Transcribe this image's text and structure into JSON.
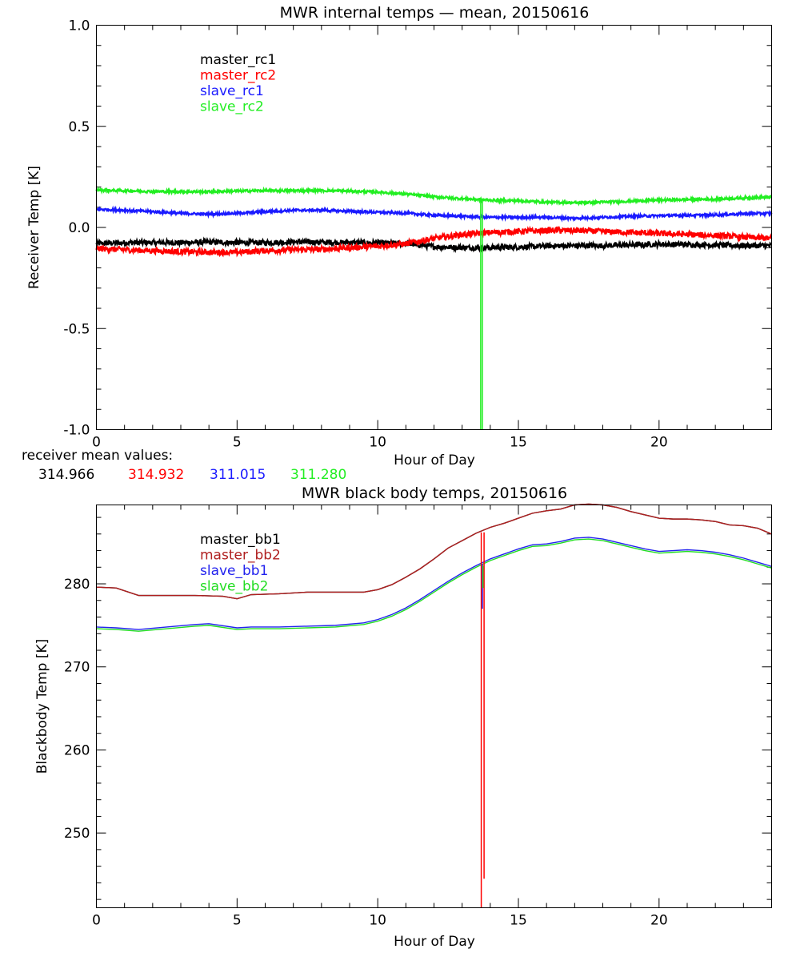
{
  "colors": {
    "black": "#000000",
    "red": "#ff0000",
    "blue": "#1a1aff",
    "green": "#22ee22",
    "darkred": "#b02020",
    "bb_blue": "#2222ee",
    "bb_green": "#22dd22"
  },
  "chart_data": [
    {
      "type": "line",
      "title": "MWR internal temps — mean, 20150616",
      "xlabel": "Hour of Day",
      "ylabel": "Receiver Temp [K]",
      "xlim": [
        0,
        24
      ],
      "ylim": [
        -1.0,
        1.0
      ],
      "xticks": [
        0,
        5,
        10,
        15,
        20
      ],
      "xtick_labels": [
        "0",
        "5",
        "10",
        "15",
        "20"
      ],
      "yticks": [
        -1.0,
        -0.5,
        0.0,
        0.5,
        1.0
      ],
      "ytick_labels": [
        "-1.0",
        "-0.5",
        "0.0",
        "0.5",
        "1.0"
      ],
      "noise_band": true,
      "series": [
        {
          "name": "master_rc1",
          "color": "#000000",
          "noise": 0.013,
          "x": [
            0,
            1,
            2,
            3,
            4,
            5,
            6,
            7,
            8,
            9,
            10,
            11,
            12,
            13,
            14,
            15,
            16,
            17,
            18,
            19,
            20,
            21,
            22,
            23,
            24
          ],
          "y": [
            -0.08,
            -0.075,
            -0.075,
            -0.075,
            -0.073,
            -0.075,
            -0.075,
            -0.072,
            -0.073,
            -0.075,
            -0.077,
            -0.08,
            -0.095,
            -0.1,
            -0.1,
            -0.097,
            -0.092,
            -0.09,
            -0.09,
            -0.087,
            -0.083,
            -0.085,
            -0.087,
            -0.09,
            -0.09
          ]
        },
        {
          "name": "master_rc2",
          "color": "#ff0000",
          "noise": 0.014,
          "x": [
            0,
            1,
            2,
            3,
            4,
            5,
            6,
            7,
            8,
            9,
            10,
            11,
            12,
            13,
            14,
            15,
            16,
            17,
            18,
            19,
            20,
            21,
            22,
            23,
            24
          ],
          "y": [
            -0.105,
            -0.11,
            -0.115,
            -0.12,
            -0.123,
            -0.123,
            -0.115,
            -0.11,
            -0.108,
            -0.1,
            -0.093,
            -0.08,
            -0.055,
            -0.035,
            -0.025,
            -0.02,
            -0.015,
            -0.015,
            -0.02,
            -0.025,
            -0.03,
            -0.035,
            -0.04,
            -0.048,
            -0.055
          ]
        },
        {
          "name": "slave_rc1",
          "color": "#1a1aff",
          "noise": 0.006,
          "x": [
            0,
            1,
            2,
            3,
            4,
            5,
            6,
            7,
            8,
            9,
            10,
            11,
            12,
            13,
            14,
            15,
            16,
            17,
            18,
            19,
            20,
            21,
            22,
            23,
            24
          ],
          "y": [
            0.09,
            0.085,
            0.078,
            0.07,
            0.065,
            0.07,
            0.078,
            0.085,
            0.085,
            0.08,
            0.075,
            0.07,
            0.06,
            0.055,
            0.05,
            0.05,
            0.05,
            0.045,
            0.05,
            0.055,
            0.058,
            0.06,
            0.062,
            0.068,
            0.07
          ]
        },
        {
          "name": "slave_rc2",
          "color": "#22ee22",
          "noise": 0.006,
          "x": [
            0,
            1,
            2,
            3,
            4,
            5,
            6,
            7,
            8,
            9,
            10,
            11,
            12,
            13,
            14,
            15,
            16,
            17,
            18,
            19,
            20,
            21,
            22,
            23,
            24
          ],
          "y": [
            0.185,
            0.182,
            0.178,
            0.177,
            0.177,
            0.18,
            0.182,
            0.182,
            0.182,
            0.18,
            0.175,
            0.165,
            0.152,
            0.142,
            0.135,
            0.132,
            0.125,
            0.122,
            0.125,
            0.13,
            0.135,
            0.138,
            0.14,
            0.145,
            0.15
          ]
        }
      ],
      "spikes": [
        {
          "series": "slave_rc2",
          "x": 13.66,
          "from": 0.13,
          "to": -1.0,
          "color": "#22ee22"
        },
        {
          "series": "slave_rc2",
          "x": 13.72,
          "from": 0.13,
          "to": -1.0,
          "color": "#22ee22"
        }
      ],
      "legend_position": "top-left",
      "annotation_label": "receiver mean values:",
      "mean_values": [
        {
          "value": "314.966",
          "color": "#000000"
        },
        {
          "value": "314.932",
          "color": "#ff0000"
        },
        {
          "value": "311.015",
          "color": "#1a1aff"
        },
        {
          "value": "311.280",
          "color": "#22ee22"
        }
      ]
    },
    {
      "type": "line",
      "title": "MWR black body temps, 20150616",
      "xlabel": "Hour of Day",
      "ylabel": "Blackbody Temp [K]",
      "xlim": [
        0,
        24
      ],
      "ylim": [
        241,
        289.5
      ],
      "xticks": [
        0,
        5,
        10,
        15,
        20
      ],
      "xtick_labels": [
        "0",
        "5",
        "10",
        "15",
        "20"
      ],
      "yticks": [
        250,
        260,
        270,
        280
      ],
      "ytick_labels": [
        "250",
        "260",
        "270",
        "280"
      ],
      "noise_band": false,
      "series": [
        {
          "name": "master_bb1",
          "color": "#000000",
          "x": [
            0,
            0.7,
            1.5,
            2.5,
            3.5,
            4.5,
            5.0,
            5.5,
            6.5,
            7.5,
            8.5,
            9.5,
            10.0,
            10.5,
            11.0,
            11.5,
            12.0,
            12.5,
            13.0,
            13.5,
            14.0,
            14.5,
            15.0,
            15.5,
            16.0,
            16.5,
            17.0,
            17.5,
            18.0,
            18.5,
            19.0,
            19.5,
            20.0,
            20.5,
            21.0,
            21.5,
            22.0,
            22.5,
            23.0,
            23.5,
            24.0
          ],
          "y": [
            279.6,
            279.5,
            278.6,
            278.6,
            278.6,
            278.5,
            278.2,
            278.7,
            278.8,
            279.0,
            279.0,
            279.0,
            279.3,
            279.9,
            280.8,
            281.8,
            283.0,
            284.3,
            285.2,
            286.1,
            286.8,
            287.3,
            287.9,
            288.5,
            288.8,
            289.0,
            289.5,
            289.6,
            289.5,
            289.2,
            288.7,
            288.3,
            287.9,
            287.8,
            287.8,
            287.7,
            287.5,
            287.1,
            287.0,
            286.7,
            286.0
          ]
        },
        {
          "name": "master_bb2",
          "color": "#b02020",
          "x": [
            0,
            0.7,
            1.5,
            2.5,
            3.5,
            4.5,
            5.0,
            5.5,
            6.5,
            7.5,
            8.5,
            9.5,
            10.0,
            10.5,
            11.0,
            11.5,
            12.0,
            12.5,
            13.0,
            13.5,
            14.0,
            14.5,
            15.0,
            15.5,
            16.0,
            16.5,
            17.0,
            17.5,
            18.0,
            18.5,
            19.0,
            19.5,
            20.0,
            20.5,
            21.0,
            21.5,
            22.0,
            22.5,
            23.0,
            23.5,
            24.0
          ],
          "y": [
            279.6,
            279.5,
            278.6,
            278.6,
            278.6,
            278.5,
            278.2,
            278.7,
            278.8,
            279.0,
            279.0,
            279.0,
            279.3,
            279.9,
            280.8,
            281.8,
            283.0,
            284.3,
            285.2,
            286.1,
            286.8,
            287.3,
            287.9,
            288.5,
            288.8,
            289.0,
            289.5,
            289.6,
            289.5,
            289.2,
            288.7,
            288.3,
            287.9,
            287.8,
            287.8,
            287.7,
            287.5,
            287.1,
            287.0,
            286.7,
            286.0
          ]
        },
        {
          "name": "slave_bb1",
          "color": "#2222ee",
          "x": [
            0,
            0.7,
            1.5,
            2.5,
            3.5,
            4.0,
            5.0,
            5.5,
            6.5,
            7.5,
            8.5,
            9.5,
            10.0,
            10.5,
            11.0,
            11.5,
            12.0,
            12.5,
            13.0,
            13.5,
            14.0,
            14.5,
            15.0,
            15.5,
            16.0,
            16.5,
            17.0,
            17.5,
            18.0,
            18.5,
            19.0,
            19.5,
            20.0,
            20.5,
            21.0,
            21.5,
            22.0,
            22.5,
            23.0,
            23.5,
            24.0
          ],
          "y": [
            274.8,
            274.7,
            274.5,
            274.8,
            275.1,
            275.2,
            274.7,
            274.8,
            274.8,
            274.9,
            275.0,
            275.3,
            275.7,
            276.3,
            277.1,
            278.1,
            279.2,
            280.3,
            281.3,
            282.2,
            283.0,
            283.6,
            284.2,
            284.7,
            284.8,
            285.1,
            285.5,
            285.6,
            285.4,
            285.0,
            284.6,
            284.2,
            283.9,
            284.0,
            284.1,
            284.0,
            283.8,
            283.5,
            283.1,
            282.6,
            282.1
          ]
        },
        {
          "name": "slave_bb2",
          "color": "#22dd22",
          "x": [
            0,
            0.7,
            1.5,
            2.5,
            3.5,
            4.0,
            5.0,
            5.5,
            6.5,
            7.5,
            8.5,
            9.5,
            10.0,
            10.5,
            11.0,
            11.5,
            12.0,
            12.5,
            13.0,
            13.5,
            14.0,
            14.5,
            15.0,
            15.5,
            16.0,
            16.5,
            17.0,
            17.5,
            18.0,
            18.5,
            19.0,
            19.5,
            20.0,
            20.5,
            21.0,
            21.5,
            22.0,
            22.5,
            23.0,
            23.5,
            24.0
          ],
          "y": [
            274.6,
            274.5,
            274.3,
            274.6,
            274.9,
            275.0,
            274.5,
            274.6,
            274.6,
            274.7,
            274.8,
            275.1,
            275.5,
            276.1,
            276.9,
            277.9,
            279.0,
            280.1,
            281.1,
            282.0,
            282.8,
            283.4,
            284.0,
            284.5,
            284.6,
            284.9,
            285.3,
            285.4,
            285.2,
            284.8,
            284.4,
            284.0,
            283.7,
            283.8,
            283.9,
            283.8,
            283.6,
            283.3,
            282.9,
            282.4,
            281.9
          ]
        }
      ],
      "spikes": [
        {
          "series": "master_bb2",
          "x": 13.68,
          "from": 286.2,
          "to": 241.0,
          "color": "#ff0000"
        },
        {
          "series": "master_bb2",
          "x": 13.78,
          "from": 286.2,
          "to": 244.5,
          "color": "#ff0000"
        },
        {
          "series": "slave_bb1",
          "x": 13.72,
          "from": 282.4,
          "to": 277.0,
          "color": "#2222ee"
        },
        {
          "series": "slave_bb2",
          "x": 13.74,
          "from": 282.2,
          "to": 279.5,
          "color": "#22dd22"
        }
      ],
      "legend_position": "top-left"
    }
  ]
}
